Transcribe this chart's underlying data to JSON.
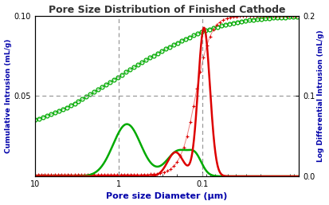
{
  "title": "Pore Size Distribution of Finished Cathode",
  "xlabel": "Pore size Diameter (μm)",
  "ylabel_left": "Cumulative Intrusion (mL/g)",
  "ylabel_right": "Log Differential Intrusion (mL/g)",
  "xlim_left": 10,
  "xlim_right": 0.007,
  "ylim_left": [
    0,
    0.1
  ],
  "ylim_right": [
    0.0,
    0.2
  ],
  "vline1": 1.0,
  "vline2": 0.1,
  "hline": 0.05,
  "background_color": "#ffffff",
  "title_color": "#333333",
  "axis_label_color": "#0000AA",
  "green_color": "#00AA00",
  "red_color": "#DD0000",
  "grid_color": "#999999"
}
